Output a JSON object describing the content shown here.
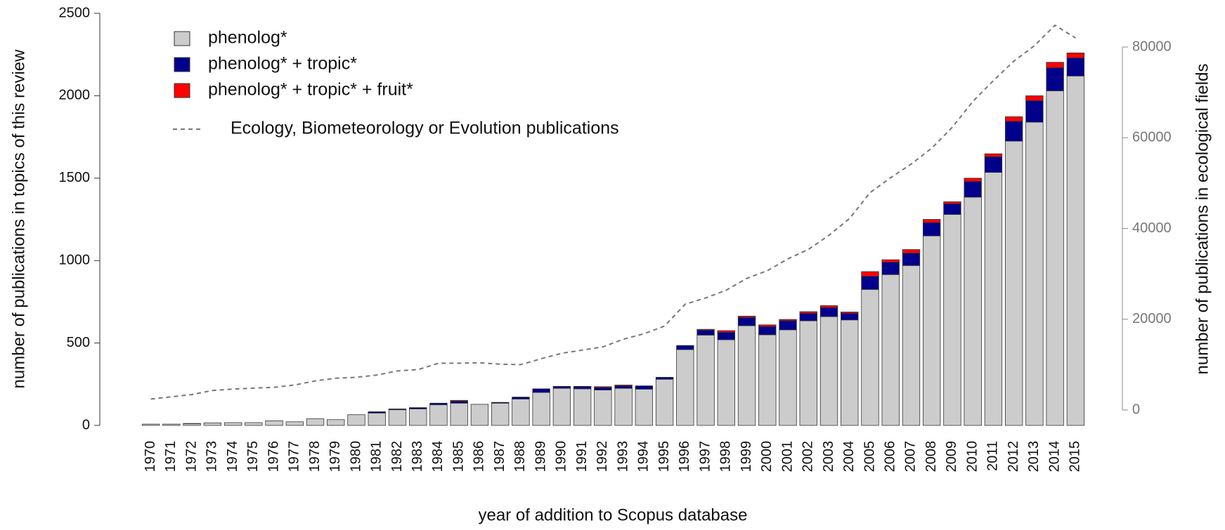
{
  "chart_data": {
    "type": "bar",
    "xlabel": "year of addition to Scopus database",
    "ylabel": "number of publications in topics of this review",
    "y2label": "number of publications in ecological fields",
    "categories": [
      "1970",
      "1971",
      "1972",
      "1973",
      "1974",
      "1975",
      "1976",
      "1977",
      "1978",
      "1979",
      "1980",
      "1981",
      "1982",
      "1983",
      "1984",
      "1985",
      "1986",
      "1987",
      "1988",
      "1989",
      "1990",
      "1991",
      "1992",
      "1993",
      "1994",
      "1995",
      "1996",
      "1997",
      "1998",
      "1999",
      "2000",
      "2001",
      "2002",
      "2003",
      "2004",
      "2005",
      "2006",
      "2007",
      "2008",
      "2009",
      "2010",
      "2011",
      "2012",
      "2013",
      "2014",
      "2015"
    ],
    "series": [
      {
        "name": "phenolog*",
        "color": "#cccccc",
        "values": [
          8,
          8,
          10,
          15,
          17,
          17,
          28,
          22,
          40,
          35,
          65,
          75,
          95,
          100,
          125,
          135,
          128,
          135,
          160,
          200,
          225,
          222,
          215,
          225,
          220,
          280,
          460,
          548,
          520,
          605,
          550,
          580,
          635,
          660,
          640,
          825,
          915,
          970,
          1150,
          1280,
          1385,
          1535,
          1725,
          1840,
          2030,
          2120
        ]
      },
      {
        "name": "phenolog* + tropic*",
        "color": "#00008b",
        "values": [
          0,
          0,
          2,
          0,
          0,
          0,
          0,
          0,
          0,
          0,
          0,
          8,
          5,
          8,
          10,
          12,
          0,
          5,
          12,
          22,
          12,
          15,
          15,
          15,
          20,
          12,
          25,
          30,
          45,
          50,
          50,
          55,
          45,
          55,
          40,
          80,
          75,
          75,
          80,
          65,
          95,
          95,
          120,
          130,
          140,
          110
        ]
      },
      {
        "name": "phenolog* + tropic* + fruit*",
        "color": "#ff0000",
        "values": [
          0,
          0,
          0,
          0,
          0,
          0,
          0,
          0,
          0,
          0,
          0,
          0,
          0,
          0,
          0,
          5,
          0,
          0,
          0,
          0,
          0,
          0,
          5,
          5,
          0,
          0,
          0,
          5,
          10,
          8,
          10,
          8,
          10,
          12,
          8,
          28,
          15,
          22,
          20,
          12,
          20,
          18,
          28,
          30,
          33,
          30
        ]
      },
      {
        "name": "Ecology, Biometeorology or Evolution publications",
        "type": "line",
        "axis": "y2",
        "color": "#777777",
        "dashed": true,
        "values": [
          2400,
          2900,
          3400,
          4300,
          4600,
          4800,
          5000,
          5500,
          6400,
          7000,
          7200,
          7700,
          8600,
          8900,
          10300,
          10300,
          10400,
          10100,
          10000,
          11300,
          12500,
          13200,
          13900,
          15600,
          16800,
          18500,
          23300,
          24700,
          26400,
          29000,
          30700,
          33300,
          35400,
          38500,
          42200,
          47900,
          51200,
          54200,
          57700,
          62300,
          68000,
          72600,
          76900,
          80300,
          84800,
          82000
        ]
      }
    ],
    "ylim": [
      0,
      2500
    ],
    "yticks": [
      0,
      500,
      1000,
      1500,
      2000,
      2500
    ],
    "y2lim": [
      0,
      80000
    ],
    "y2ticks": [
      0,
      20000,
      40000,
      60000,
      80000
    ],
    "stacked": true,
    "legend": "upper left"
  }
}
